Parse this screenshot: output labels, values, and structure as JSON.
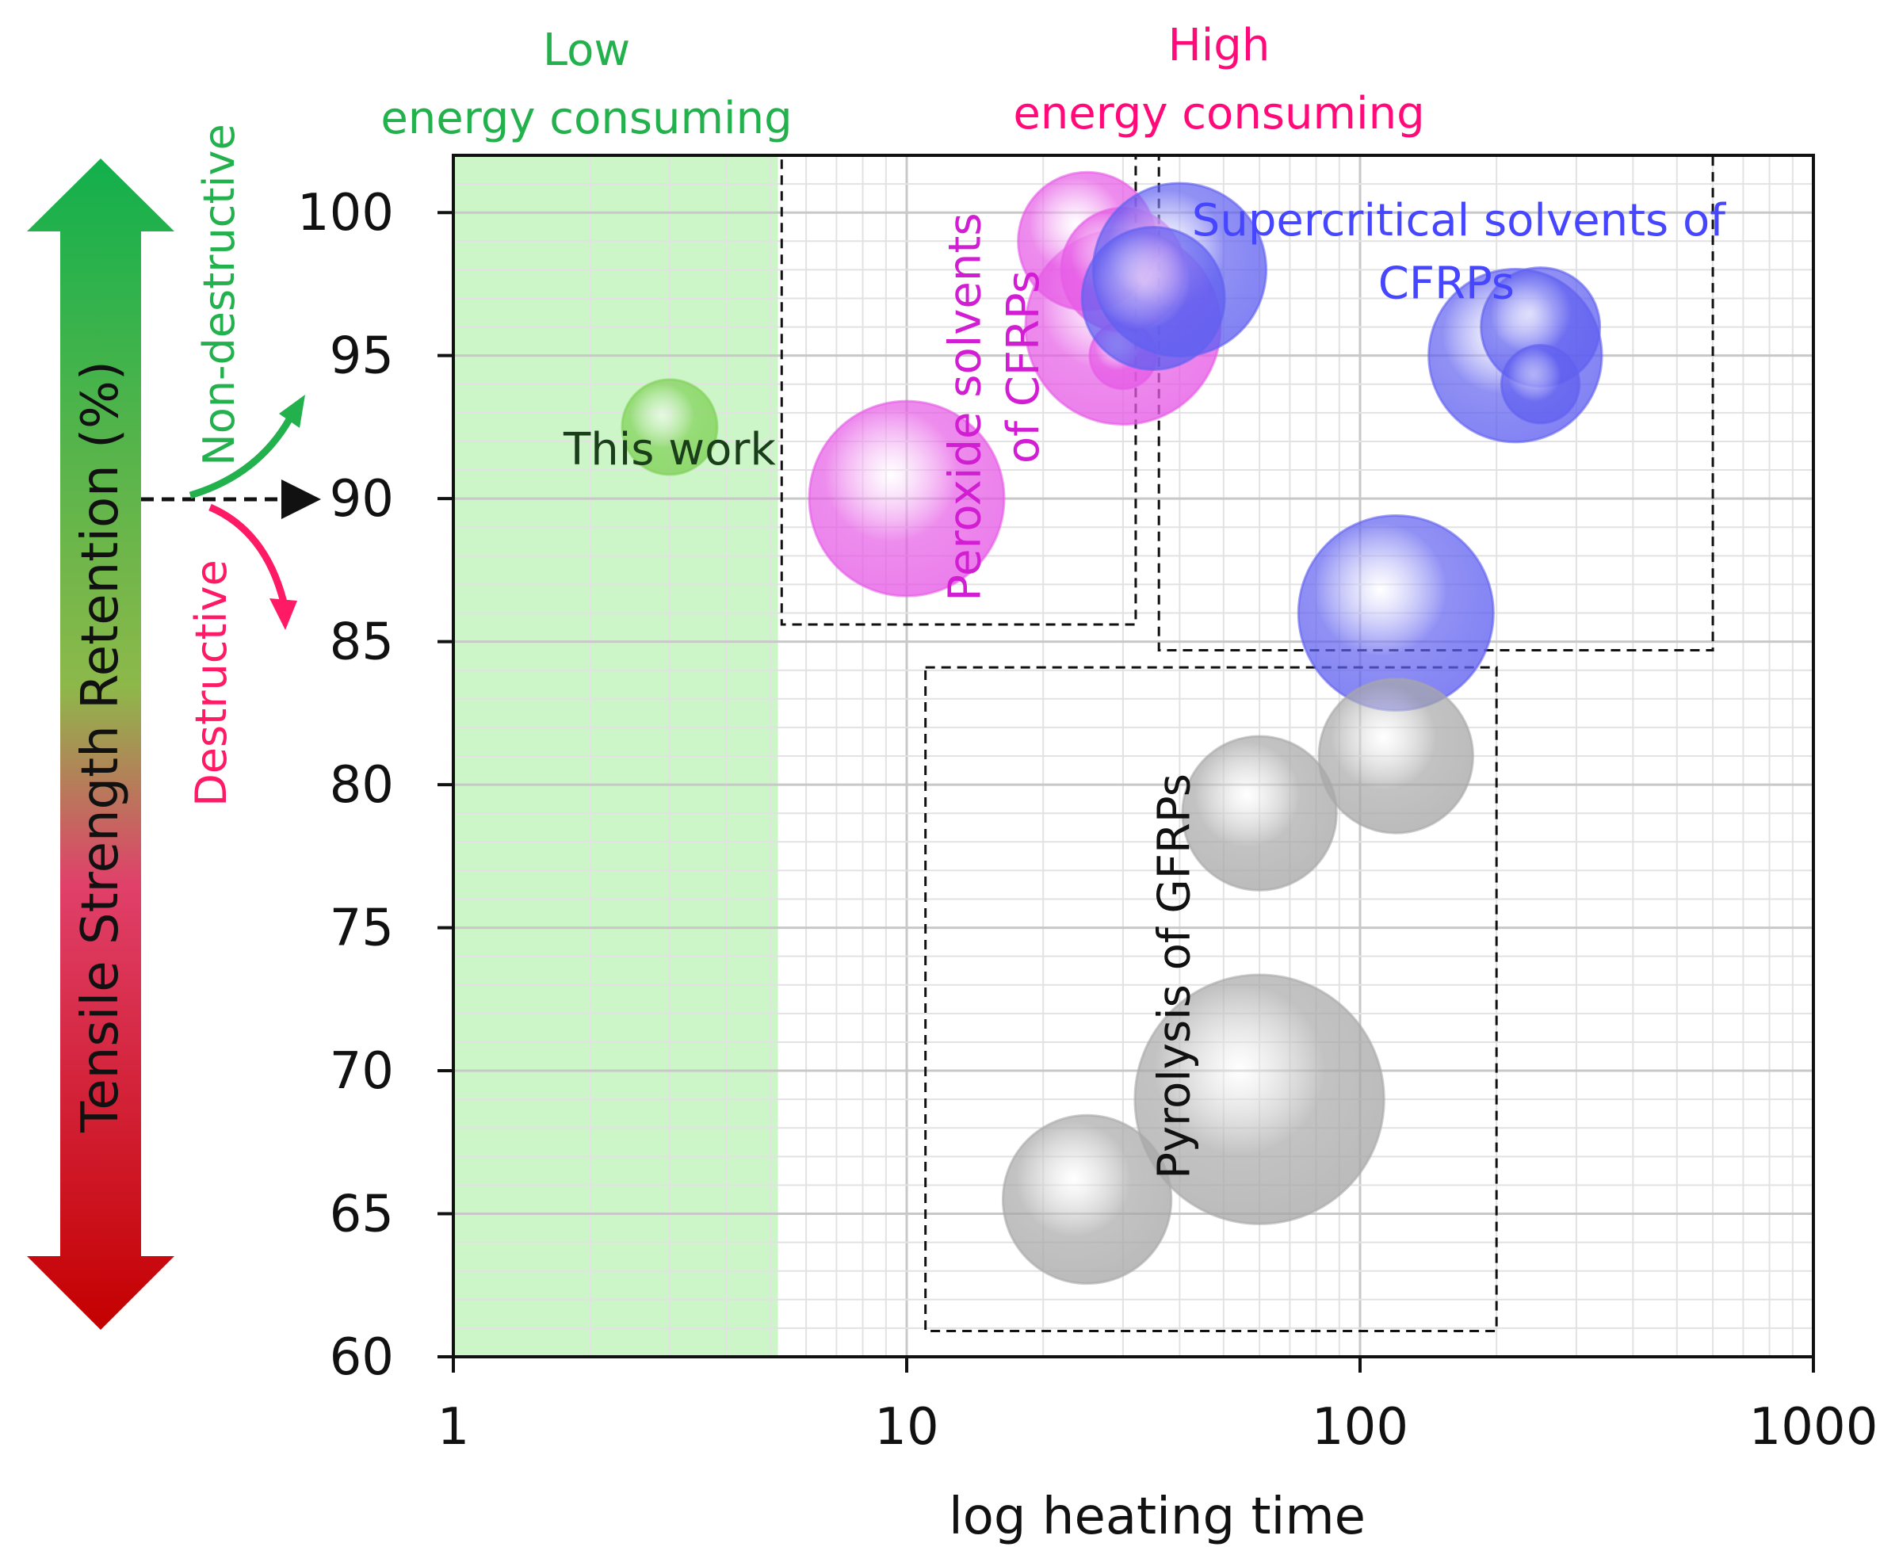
{
  "chart_data": {
    "type": "bubble",
    "xscale": "log",
    "xlabel": "log heating time",
    "ylabel": "Tensile Strength Retention (%)",
    "xlim": [
      1,
      1000
    ],
    "ylim": [
      60,
      102
    ],
    "xticks": [
      1,
      10,
      100,
      1000
    ],
    "xtick_labels": [
      "1",
      "10",
      "100",
      "1000"
    ],
    "yticks": [
      60,
      65,
      70,
      75,
      80,
      85,
      90,
      95,
      100
    ],
    "ytick_labels": [
      "60",
      "65",
      "70",
      "75",
      "80",
      "85",
      "90",
      "95",
      "100"
    ],
    "grid": true,
    "regions": [
      {
        "name": "low-energy-region",
        "x_range": [
          1,
          5.2
        ],
        "y_range": [
          60,
          102
        ],
        "color": "#ccf5c8"
      }
    ],
    "energy_labels": {
      "low": {
        "line1": "Low",
        "line2": "energy consuming",
        "color": "#22b14c"
      },
      "high": {
        "line1": "High",
        "line2": "energy consuming",
        "color": "#ff0a78"
      }
    },
    "groups": [
      {
        "name": "This work",
        "label": "This work",
        "label_color": "#1a3d1a",
        "color": "#7fd155",
        "box": null,
        "bubbles": [
          {
            "x": 3,
            "y": 92.5,
            "size": 1.0
          }
        ]
      },
      {
        "name": "Peroxide solvents of CFRPs",
        "label_lines": [
          "Peroxide solvents",
          "of CFRPs"
        ],
        "label_color": "#d21ed2",
        "color": "#e65ae6",
        "box": {
          "x": [
            5.3,
            32
          ],
          "y": [
            85.6,
            102
          ]
        },
        "bubbles": [
          {
            "x": 10,
            "y": 90,
            "size": 2.05
          },
          {
            "x": 30,
            "y": 96,
            "size": 2.05
          },
          {
            "x": 25,
            "y": 99,
            "size": 1.45
          },
          {
            "x": 30,
            "y": 98,
            "size": 1.3
          },
          {
            "x": 30,
            "y": 95,
            "size": 0.7
          }
        ]
      },
      {
        "name": "Supercritical solvents of CFRPs",
        "label_lines": [
          "Supercritical solvents of",
          "CFRPs"
        ],
        "label_color": "#4646ff",
        "color": "#6060f0",
        "box": {
          "x": [
            36,
            600
          ],
          "y": [
            84.7,
            102
          ]
        },
        "bubbles": [
          {
            "x": 40,
            "y": 98,
            "size": 1.82
          },
          {
            "x": 35,
            "y": 97,
            "size": 1.5
          },
          {
            "x": 220,
            "y": 95,
            "size": 1.82
          },
          {
            "x": 250,
            "y": 96,
            "size": 1.25
          },
          {
            "x": 250,
            "y": 94,
            "size": 0.82
          },
          {
            "x": 120,
            "y": 86,
            "size": 2.05
          }
        ]
      },
      {
        "name": "Pyrolysis of GFRPs",
        "label": "Pyrolysis of GFRPs",
        "label_color": "#111111",
        "color": "#a8a8a8",
        "box": {
          "x": [
            11,
            200
          ],
          "y": [
            60.9,
            84.1
          ]
        },
        "bubbles": [
          {
            "x": 60,
            "y": 79,
            "size": 1.62
          },
          {
            "x": 120,
            "y": 81,
            "size": 1.62
          },
          {
            "x": 60,
            "y": 69,
            "size": 2.62
          },
          {
            "x": 25,
            "y": 65.5,
            "size": 1.77
          }
        ]
      }
    ],
    "legend_arrow": {
      "label": "Tensile Strength Retention (%)",
      "up_label": "Non-destructive",
      "down_label": "Destructive",
      "threshold": 90,
      "up_color": "#22b14c",
      "down_color": "#ff1a66"
    }
  }
}
